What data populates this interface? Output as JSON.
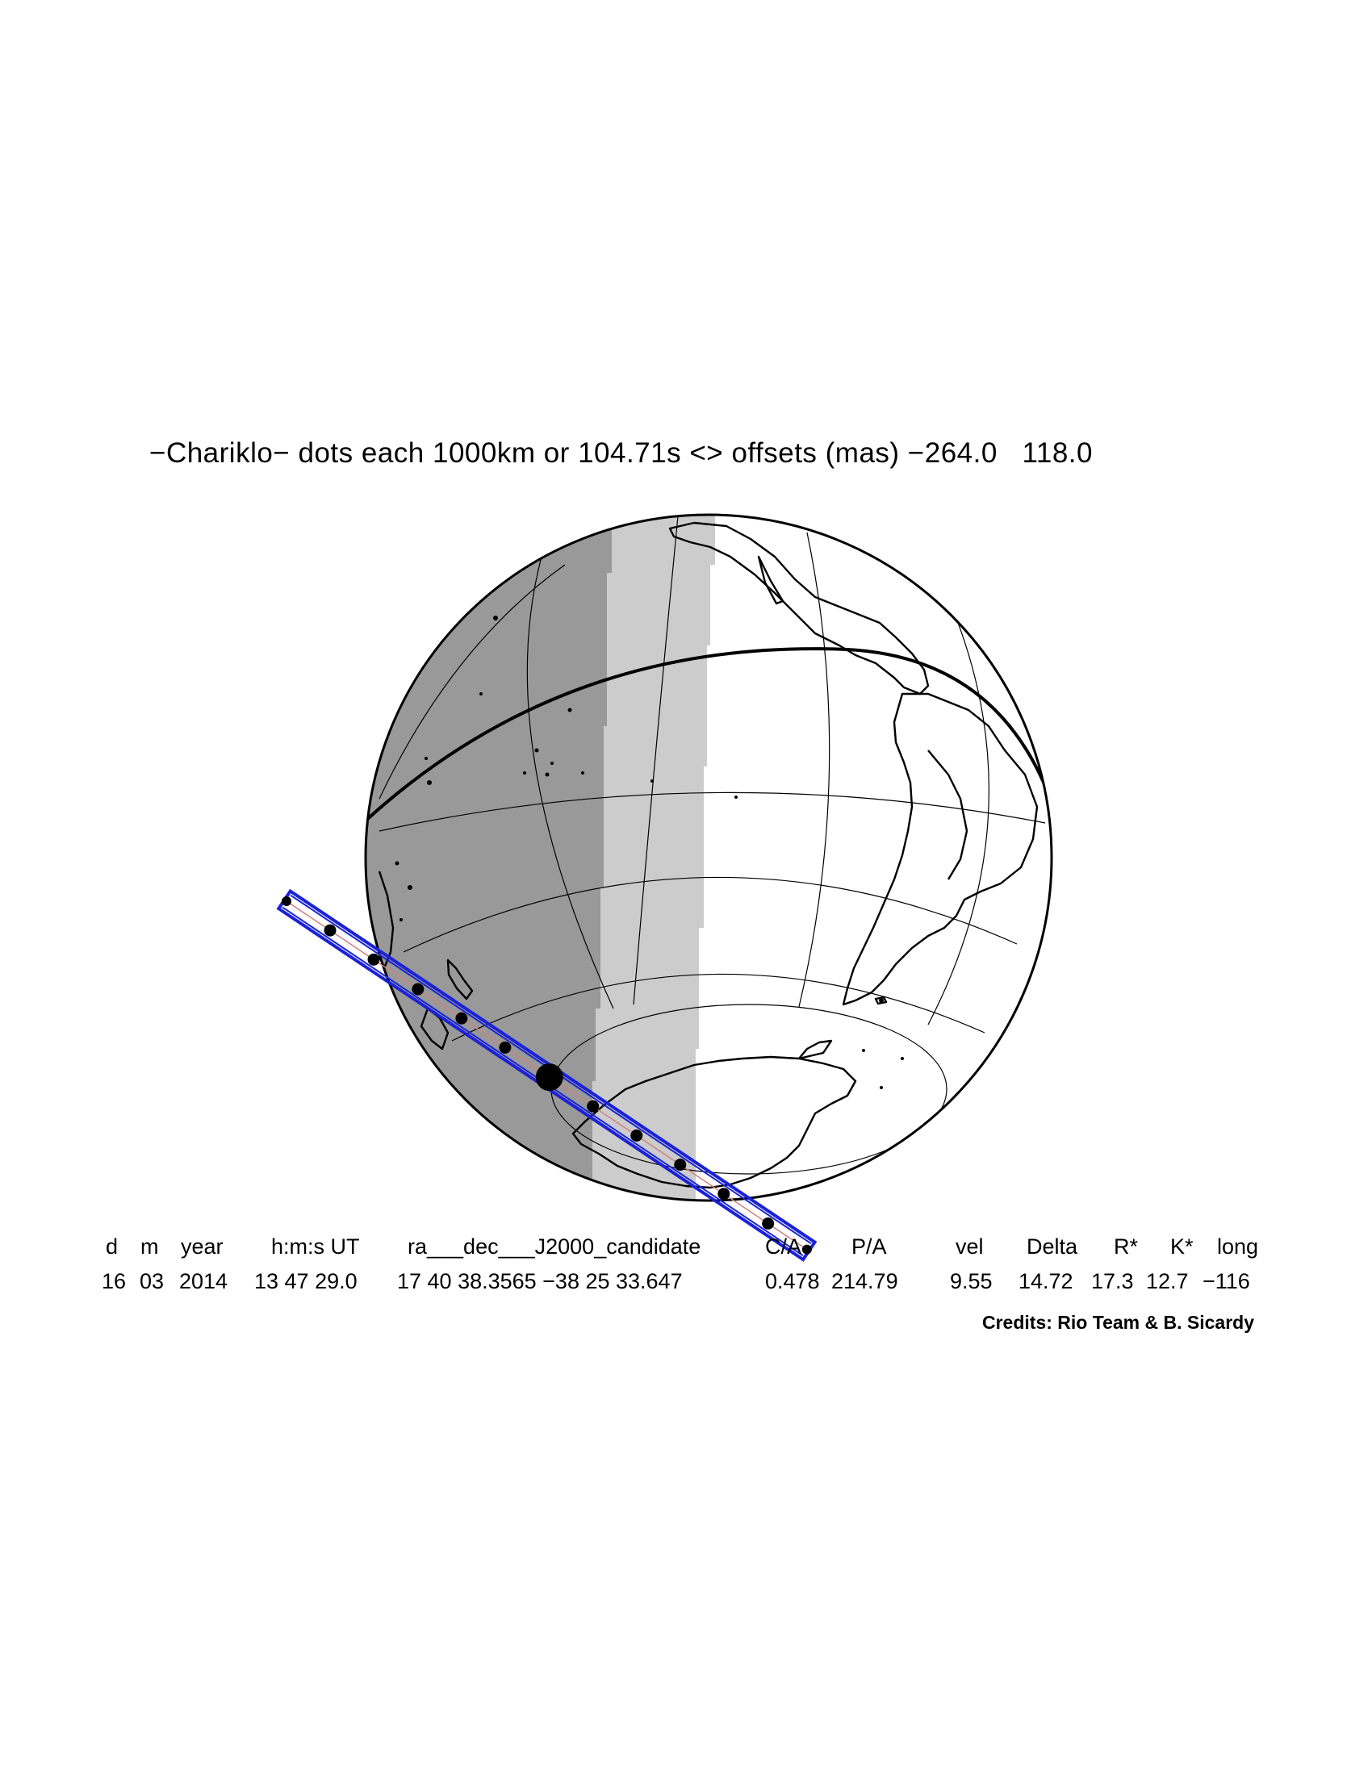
{
  "title": "−Chariklo− dots each 1000km or 104.71s <> offsets (mas) −264.0   118.0",
  "table": {
    "headers": [
      "d",
      "m",
      "year",
      "h:m:s UT",
      "ra___dec___J2000_candidate",
      "C/A",
      "P/A",
      "vel",
      "Delta",
      "R*",
      "K*",
      "long"
    ],
    "values": [
      "16",
      "03",
      "2014",
      "13 47 29.0",
      "17 40 38.3565 −38 25 33.647",
      "0.478",
      "214.79",
      "9.55",
      "14.72",
      "17.3",
      "12.7",
      "−116"
    ]
  },
  "credits": "Credits: Rio Team & B. Sicardy",
  "colors": {
    "night": "#999999",
    "twilight": "#cccccc",
    "day": "#ffffff",
    "shadow_track": "#1a22d6",
    "outline": "#000000"
  }
}
